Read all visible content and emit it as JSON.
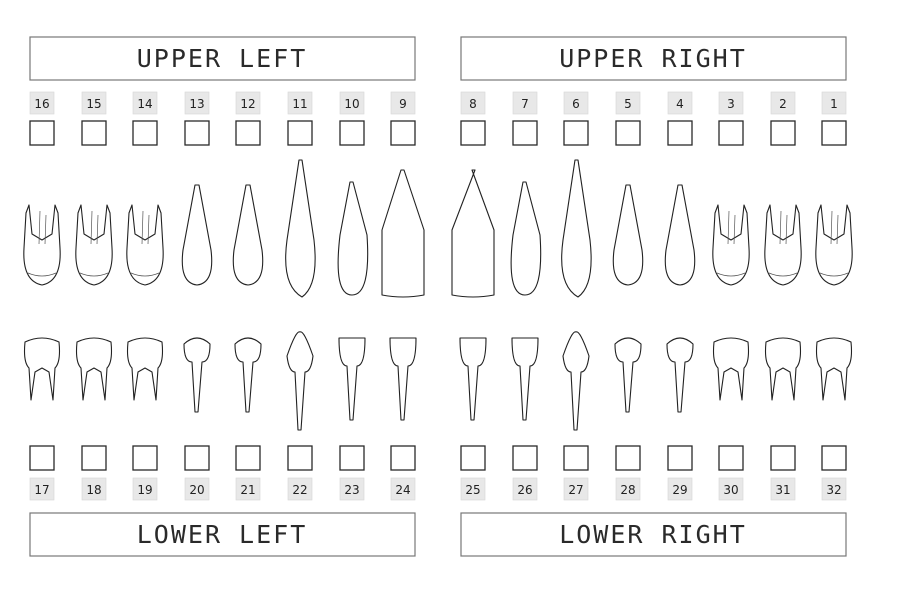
{
  "quadrants": {
    "upper_left": "UPPER LEFT",
    "upper_right": "UPPER RIGHT",
    "lower_left": "LOWER LEFT",
    "lower_right": "LOWER RIGHT"
  },
  "upper_teeth": [
    {
      "num": "16",
      "kind": "molar"
    },
    {
      "num": "15",
      "kind": "molar"
    },
    {
      "num": "14",
      "kind": "molar"
    },
    {
      "num": "13",
      "kind": "premolar"
    },
    {
      "num": "12",
      "kind": "premolar"
    },
    {
      "num": "11",
      "kind": "canine"
    },
    {
      "num": "10",
      "kind": "incisor"
    },
    {
      "num": "9",
      "kind": "central"
    },
    {
      "num": "8",
      "kind": "central"
    },
    {
      "num": "7",
      "kind": "incisor"
    },
    {
      "num": "6",
      "kind": "canine"
    },
    {
      "num": "5",
      "kind": "premolar"
    },
    {
      "num": "4",
      "kind": "premolar"
    },
    {
      "num": "3",
      "kind": "molar"
    },
    {
      "num": "2",
      "kind": "molar"
    },
    {
      "num": "1",
      "kind": "molar"
    }
  ],
  "lower_teeth": [
    {
      "num": "17",
      "kind": "molar"
    },
    {
      "num": "18",
      "kind": "molar"
    },
    {
      "num": "19",
      "kind": "molar"
    },
    {
      "num": "20",
      "kind": "premolar"
    },
    {
      "num": "21",
      "kind": "premolar"
    },
    {
      "num": "22",
      "kind": "canine"
    },
    {
      "num": "23",
      "kind": "incisor"
    },
    {
      "num": "24",
      "kind": "incisor"
    },
    {
      "num": "25",
      "kind": "incisor"
    },
    {
      "num": "26",
      "kind": "incisor"
    },
    {
      "num": "27",
      "kind": "canine"
    },
    {
      "num": "28",
      "kind": "premolar"
    },
    {
      "num": "29",
      "kind": "premolar"
    },
    {
      "num": "30",
      "kind": "molar"
    },
    {
      "num": "31",
      "kind": "molar"
    },
    {
      "num": "32",
      "kind": "molar"
    }
  ],
  "colors": {
    "outline": "#222222",
    "number_badge": "#e8e8e8",
    "title_border": "#777777"
  }
}
